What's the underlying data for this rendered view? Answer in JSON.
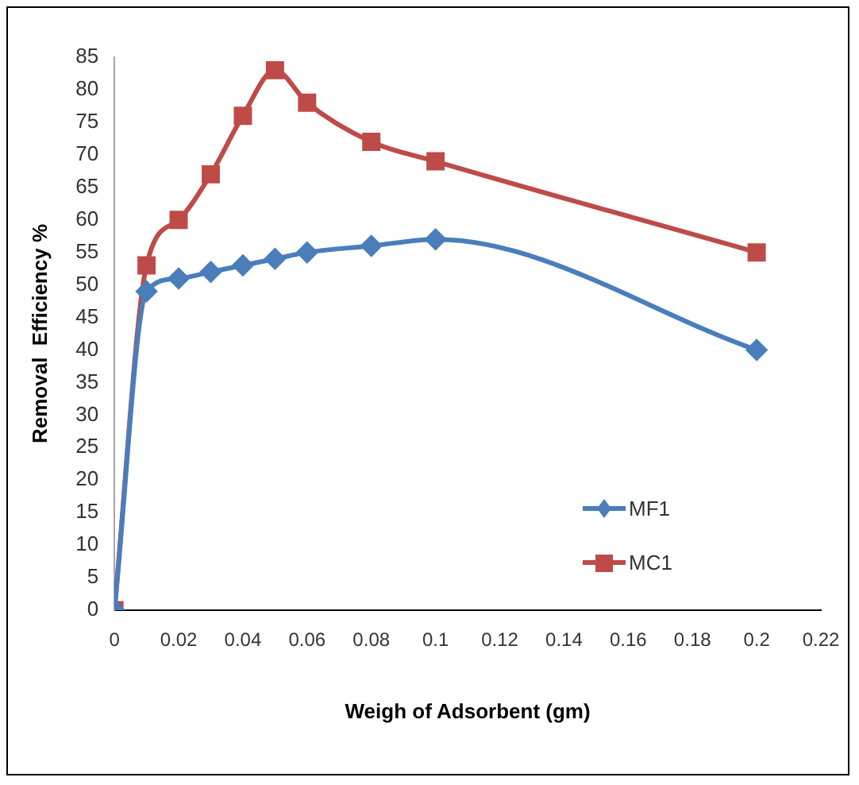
{
  "chart_data": {
    "type": "line",
    "xlabel": "Weigh of Adsorbent (gm)",
    "ylabel": "Removal  Efficiency %",
    "x": [
      0,
      0.01,
      0.02,
      0.03,
      0.04,
      0.05,
      0.06,
      0.08,
      0.1,
      0.2
    ],
    "series": [
      {
        "name": "MF1",
        "color": "#4a7ebb",
        "marker": "diamond",
        "values": [
          0,
          49,
          51,
          52,
          53,
          54,
          55,
          56,
          57,
          40
        ]
      },
      {
        "name": "MC1",
        "color": "#be4b48",
        "marker": "square",
        "values": [
          0,
          53,
          60,
          67,
          76,
          83,
          78,
          72,
          69,
          55
        ]
      }
    ],
    "xlim": [
      0,
      0.22
    ],
    "xticks": [
      0,
      0.02,
      0.04,
      0.06,
      0.08,
      0.1,
      0.12,
      0.14,
      0.16,
      0.18,
      0.2,
      0.22
    ],
    "ylim": [
      0,
      85
    ],
    "yticks": [
      0,
      5,
      10,
      15,
      20,
      25,
      30,
      35,
      40,
      45,
      50,
      55,
      60,
      65,
      70,
      75,
      80,
      85
    ],
    "grid": false,
    "legend": "bottom right"
  }
}
